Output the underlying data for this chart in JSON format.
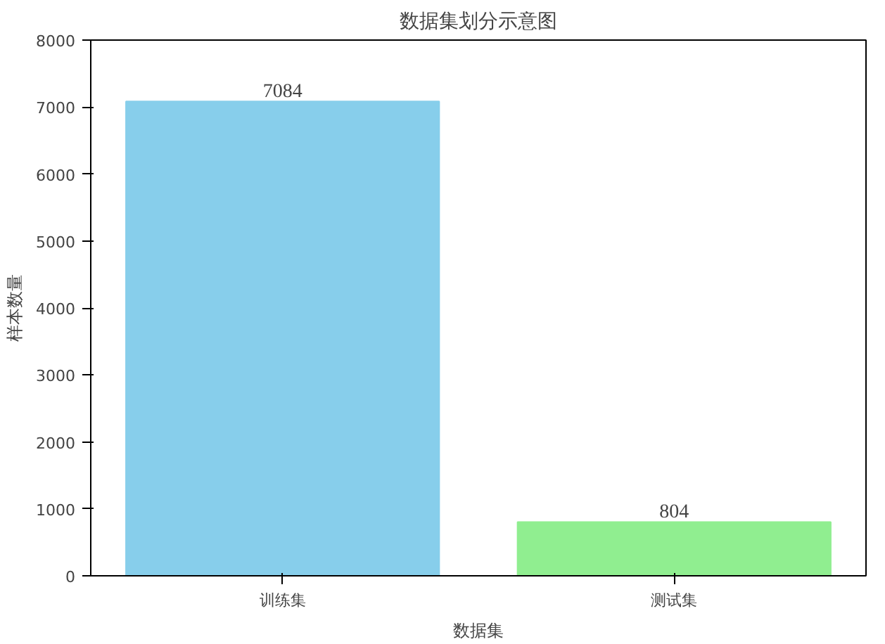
{
  "chart_data": {
    "type": "bar",
    "title": "数据集划分示意图",
    "xlabel": "数据集",
    "ylabel": "样本数量",
    "categories": [
      "训练集",
      "测试集"
    ],
    "values": [
      7084,
      804
    ],
    "colors": [
      "#87ceeb",
      "#90ee90"
    ],
    "ylim": [
      0,
      8000
    ],
    "yticks": [
      0,
      1000,
      2000,
      3000,
      4000,
      5000,
      6000,
      7000,
      8000
    ],
    "data_labels": true,
    "grid": false
  }
}
